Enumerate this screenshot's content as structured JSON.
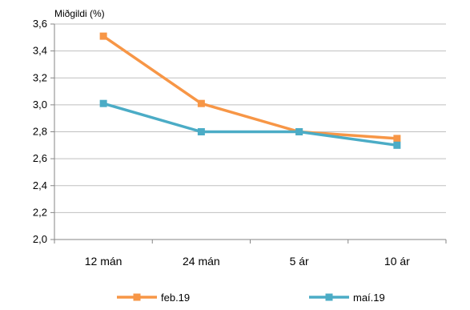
{
  "chart_data": {
    "type": "line",
    "title": "",
    "xlabel": "",
    "ylabel": "Miðgildi (%)",
    "categories": [
      "12 mán",
      "24 mán",
      "5 ár",
      "10 ár"
    ],
    "ylim": [
      2.0,
      3.6
    ],
    "yticks": [
      "2,0",
      "2,2",
      "2,4",
      "2,6",
      "2,8",
      "3,0",
      "3,2",
      "3,4",
      "3,6"
    ],
    "grid": true,
    "legend_position": "bottom",
    "series": [
      {
        "name": "feb.19",
        "values": [
          3.51,
          3.01,
          2.8,
          2.75
        ],
        "color": "#F79646",
        "marker": "square"
      },
      {
        "name": "maí.19",
        "values": [
          3.01,
          2.8,
          2.8,
          2.7
        ],
        "color": "#4BACC6",
        "marker": "square"
      }
    ]
  }
}
